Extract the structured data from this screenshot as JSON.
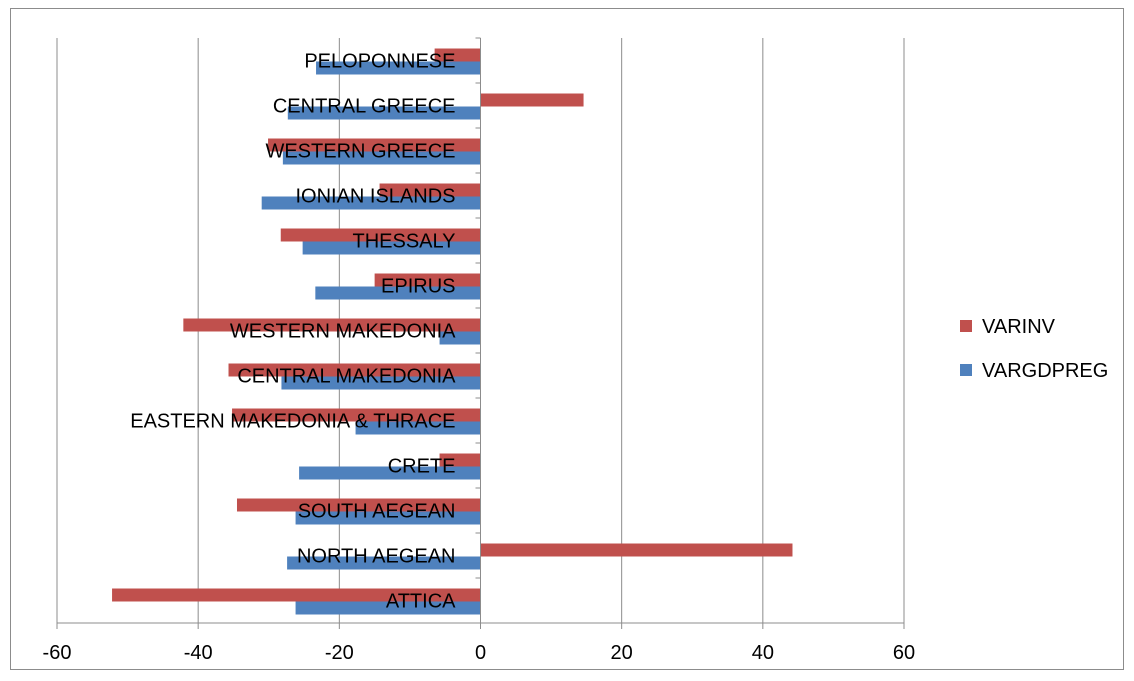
{
  "chart_data": {
    "type": "bar",
    "orientation": "horizontal",
    "title": "",
    "xlabel": "",
    "ylabel": "",
    "xlim": [
      -60,
      60
    ],
    "xticks": [
      -60,
      -40,
      -20,
      0,
      20,
      40,
      60
    ],
    "grid": "vertical",
    "legend_position": "right",
    "categories": [
      "ATTICA",
      "NORTH AEGEAN",
      "SOUTH AEGEAN",
      "CRETE",
      "EASTERN MAKEDONIA & THRACE",
      "CENTRAL MAKEDONIA",
      "WESTERN MAKEDONIA",
      "EPIRUS",
      "THESSALY",
      "IONIAN ISLANDS",
      "WESTERN GREECE",
      "CENTRAL GREECE",
      "PELOPONNESE"
    ],
    "series": [
      {
        "name": "VARINV",
        "color": "#C0504D",
        "values": [
          -52.2,
          44.2,
          -34.5,
          -5.8,
          -35.2,
          -35.7,
          -42.1,
          -15.0,
          -28.3,
          -14.3,
          -30.1,
          14.6,
          -6.5
        ]
      },
      {
        "name": "VARGDPREG",
        "color": "#4F81BD",
        "values": [
          -26.2,
          -27.4,
          -26.2,
          -25.7,
          -17.7,
          -28.2,
          -5.8,
          -23.4,
          -25.2,
          -31.0,
          -28.0,
          -27.3,
          -23.3
        ]
      }
    ]
  }
}
